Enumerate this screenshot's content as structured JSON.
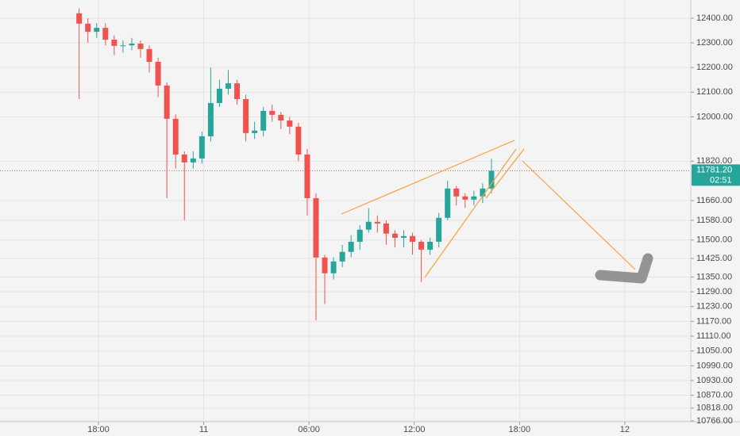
{
  "chart_data": {
    "type": "candlestick",
    "up_color": "#26a69a",
    "down_color": "#ef5350",
    "grid": true,
    "xlim": [
      12.39,
      51.76
    ],
    "xticks": [
      {
        "value": 18,
        "label": "18:00"
      },
      {
        "value": 24,
        "label": "11"
      },
      {
        "value": 30,
        "label": "06:00"
      },
      {
        "value": 36,
        "label": "12:00"
      },
      {
        "value": 42,
        "label": "18:00"
      },
      {
        "value": 48,
        "label": "12"
      }
    ],
    "ylim": [
      10737,
      12474
    ],
    "yticks": [
      {
        "value": 12400,
        "label": "12400.00"
      },
      {
        "value": 12300,
        "label": "12300.00"
      },
      {
        "value": 12200,
        "label": "12200.00"
      },
      {
        "value": 12100,
        "label": "12100.00"
      },
      {
        "value": 12000,
        "label": "12000.00"
      },
      {
        "value": 11820,
        "label": "11820.00"
      },
      {
        "value": 11660,
        "label": "11660.00"
      },
      {
        "value": 11580,
        "label": "11580.00"
      },
      {
        "value": 11500,
        "label": "11500.00"
      },
      {
        "value": 11425,
        "label": "11425.00"
      },
      {
        "value": 11350,
        "label": "11350.00"
      },
      {
        "value": 11290,
        "label": "11290.00"
      },
      {
        "value": 11230,
        "label": "11230.00"
      },
      {
        "value": 11170,
        "label": "11170.00"
      },
      {
        "value": 11110,
        "label": "11110.00"
      },
      {
        "value": 11050,
        "label": "11050.00"
      },
      {
        "value": 10990,
        "label": "10990.00"
      },
      {
        "value": 10930,
        "label": "10930.00"
      },
      {
        "value": 10870,
        "label": "10870.00"
      },
      {
        "value": 10818,
        "label": "10818.00"
      },
      {
        "value": 10766,
        "label": "10766.00"
      }
    ],
    "last_price": {
      "value": 11781.2,
      "label": "11781.20"
    },
    "countdown": "02:51",
    "x": [
      16.9,
      17.4,
      17.9,
      18.4,
      18.9,
      19.4,
      19.9,
      20.4,
      20.9,
      21.4,
      21.9,
      22.4,
      22.9,
      23.4,
      23.9,
      24.4,
      24.9,
      25.4,
      25.9,
      26.4,
      26.9,
      27.4,
      27.9,
      28.4,
      28.9,
      29.4,
      29.9,
      30.4,
      30.9,
      31.4,
      31.9,
      32.4,
      32.9,
      33.4,
      33.9,
      34.4,
      34.9,
      35.4,
      35.9,
      36.4,
      36.9,
      37.4,
      37.9,
      38.4,
      38.9,
      39.4,
      39.9,
      40.4
    ],
    "open": [
      12420,
      12378,
      12345,
      12361,
      12313,
      12288,
      12290,
      12297,
      12275,
      12223,
      12127,
      11992,
      11847,
      11815,
      11831,
      11921,
      12056,
      12114,
      12136,
      12072,
      11934,
      11944,
      12024,
      12008,
      11985,
      11960,
      11847,
      11670,
      11429,
      11365,
      11413,
      11452,
      11493,
      11542,
      11574,
      11567,
      11526,
      11509,
      11516,
      11493,
      11461,
      11493,
      11590,
      11709,
      11677,
      11664,
      11677,
      11709
    ],
    "high": [
      12440,
      12400,
      12380,
      12380,
      12330,
      12310,
      12320,
      12310,
      12290,
      12240,
      12140,
      12010,
      11860,
      11860,
      11940,
      12200,
      12150,
      12190,
      12150,
      12090,
      11980,
      12040,
      12050,
      12020,
      12000,
      11975,
      11870,
      11690,
      11440,
      11430,
      11480,
      11520,
      11560,
      11630,
      11600,
      11580,
      11540,
      11540,
      11530,
      11500,
      11510,
      11610,
      11740,
      11720,
      11690,
      11700,
      11730,
      11830
    ],
    "low": [
      12072,
      12300,
      12320,
      12290,
      12250,
      12260,
      12270,
      12240,
      12180,
      12080,
      11670,
      11790,
      11580,
      11790,
      11810,
      11900,
      12040,
      12090,
      12050,
      11900,
      11910,
      11920,
      11980,
      11950,
      11930,
      11820,
      11600,
      11174,
      11240,
      11340,
      11390,
      11430,
      11460,
      11530,
      11530,
      11480,
      11470,
      11470,
      11440,
      11330,
      11440,
      11470,
      11580,
      11640,
      11630,
      11640,
      11650,
      11690
    ],
    "close": [
      12378,
      12345,
      12361,
      12313,
      12288,
      12290,
      12297,
      12275,
      12223,
      12127,
      11992,
      11847,
      11815,
      11831,
      11921,
      12056,
      12114,
      12136,
      12072,
      11934,
      11944,
      12024,
      12008,
      11985,
      11960,
      11847,
      11670,
      11429,
      11365,
      11413,
      11452,
      11493,
      11542,
      11574,
      11567,
      11526,
      11509,
      11516,
      11493,
      11461,
      11493,
      11590,
      11709,
      11677,
      11664,
      11677,
      11709,
      11781.2
    ]
  }
}
